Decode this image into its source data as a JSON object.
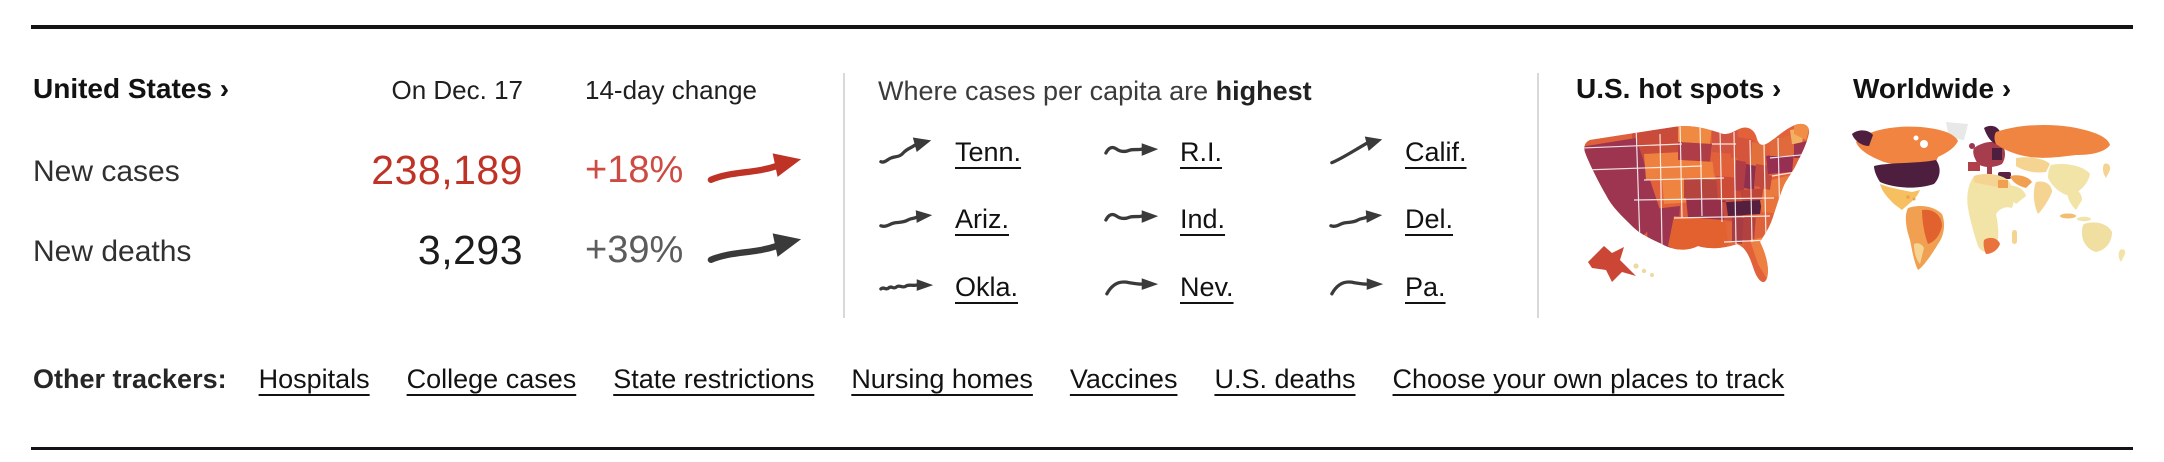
{
  "colors": {
    "rule_black": "#141414",
    "divider_gray": "#d9d9d9",
    "accent_red": "#bf3327",
    "light_red": "#cd4b42",
    "dark_arrow": "#3a3a3a",
    "text_dark": "#1a1a1a",
    "map_palette_us": [
      "#f29a50",
      "#ee7f3d",
      "#e2613a",
      "#cc4b39",
      "#b03f48",
      "#9d3550",
      "#962f4a",
      "#552040"
    ],
    "map_palette_world": [
      "#f2e3a6",
      "#f5d492",
      "#f6c060",
      "#f0a050",
      "#ef8540",
      "#e2622f",
      "#a63d4d",
      "#4e1e3e",
      "#e8e8e8"
    ]
  },
  "stats": {
    "title": "United States ›",
    "col_date": "On Dec. 17",
    "col_change": "14-day change",
    "rows": [
      {
        "label": "New cases",
        "value": "238,189",
        "change": "+18%",
        "trend": "up",
        "emphasis": "red"
      },
      {
        "label": "New deaths",
        "value": "3,293",
        "change": "+39%",
        "trend": "up",
        "emphasis": "dark"
      }
    ]
  },
  "per_capita": {
    "heading_prefix": "Where cases per capita are ",
    "heading_emphasis": "highest",
    "states": [
      {
        "label": "Tenn.",
        "trend": "up-wavy"
      },
      {
        "label": "R.I.",
        "trend": "flat-wavy-hump"
      },
      {
        "label": "Calif.",
        "trend": "up-smooth"
      },
      {
        "label": "Ariz.",
        "trend": "flat-wavy-rise"
      },
      {
        "label": "Ind.",
        "trend": "flat-wavy-hump"
      },
      {
        "label": "Del.",
        "trend": "flat-wavy-rise"
      },
      {
        "label": "Okla.",
        "trend": "flat-jitter"
      },
      {
        "label": "Nev.",
        "trend": "hump-smooth"
      },
      {
        "label": "Pa.",
        "trend": "hump-smooth"
      }
    ]
  },
  "maps": {
    "us_title": "U.S. hot spots ›",
    "world_title": "Worldwide ›"
  },
  "trackers": {
    "label": "Other trackers:",
    "links": [
      "Hospitals",
      "College cases",
      "State restrictions",
      "Nursing homes",
      "Vaccines",
      "U.S. deaths",
      "Choose your own places to track"
    ]
  }
}
